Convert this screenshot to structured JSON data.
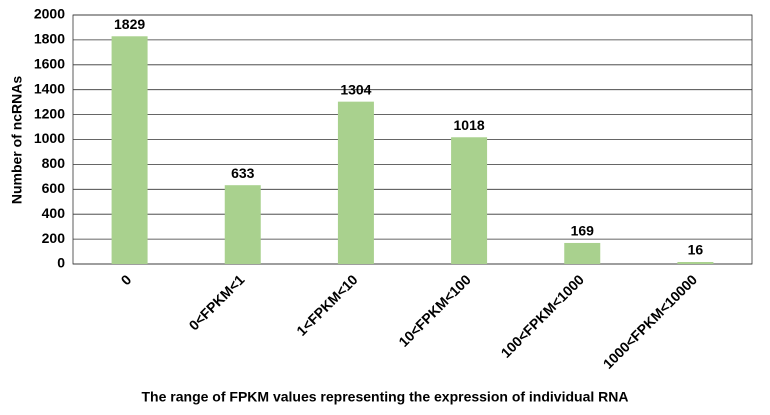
{
  "chart_data": {
    "type": "bar",
    "x_label": "The range of FPKM values representing the expression of individual RNA",
    "y_label": "Number of ncRNAs",
    "categories": [
      "0",
      "0<FPKM<1",
      "1<FPKM<10",
      "10<FPKM<100",
      "100<FPKM<1000",
      "1000<FPKM<10000"
    ],
    "values": [
      1829,
      633,
      1304,
      1018,
      169,
      16
    ],
    "color": "#a9d18e",
    "ylim": [
      0,
      2000
    ],
    "yticks": [
      0,
      200,
      400,
      600,
      800,
      1000,
      1200,
      1400,
      1600,
      1800,
      2000
    ],
    "grid": true
  }
}
